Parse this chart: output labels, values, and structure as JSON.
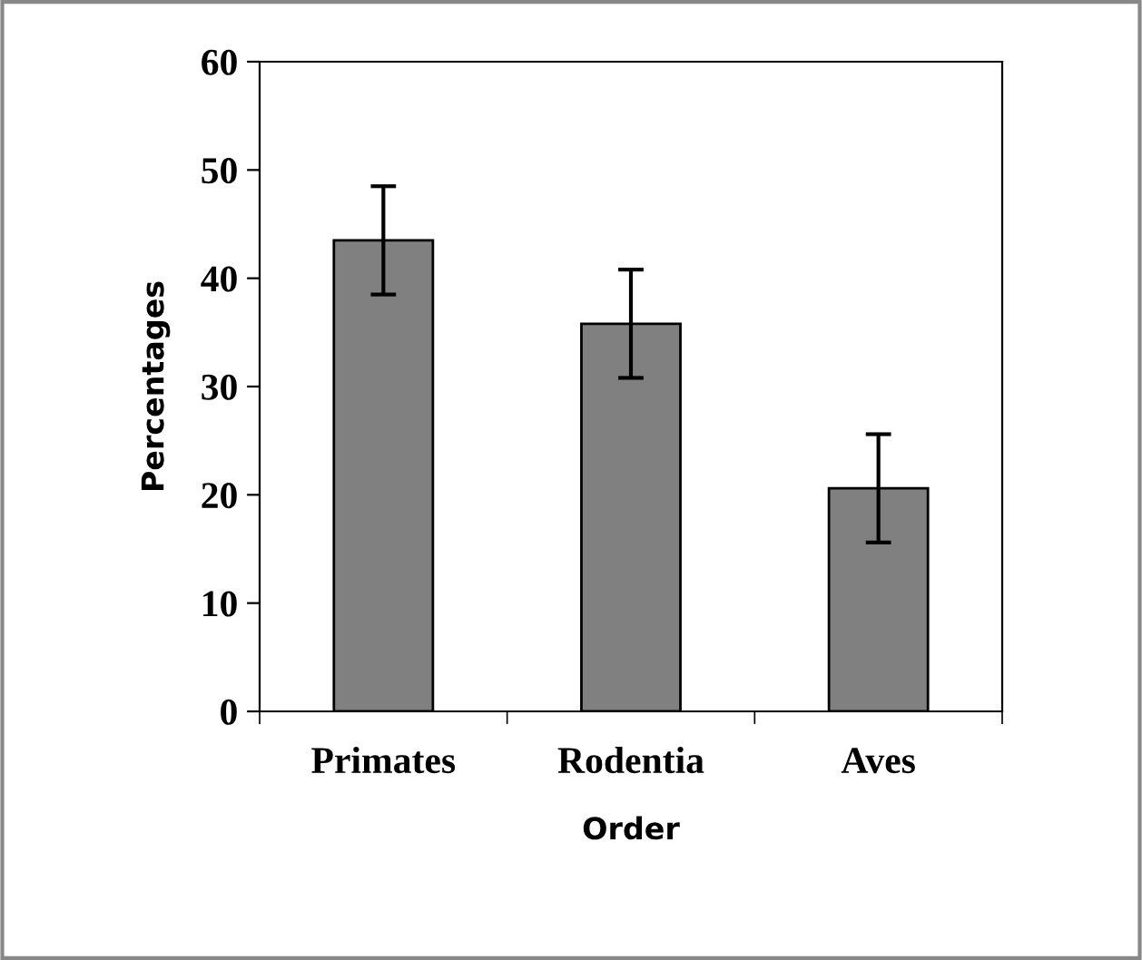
{
  "chart_data": {
    "type": "bar",
    "xlabel": "Order",
    "ylabel": "Percentages",
    "categories": [
      "Primates",
      "Rodentia",
      "Aves"
    ],
    "values": [
      43.5,
      35.8,
      20.6
    ],
    "errors": [
      5,
      5,
      5
    ],
    "color": "#808080",
    "ylim": [
      0,
      60
    ],
    "yticks": [
      0,
      10,
      20,
      30,
      40,
      50,
      60
    ],
    "grid": false,
    "legend": false
  }
}
